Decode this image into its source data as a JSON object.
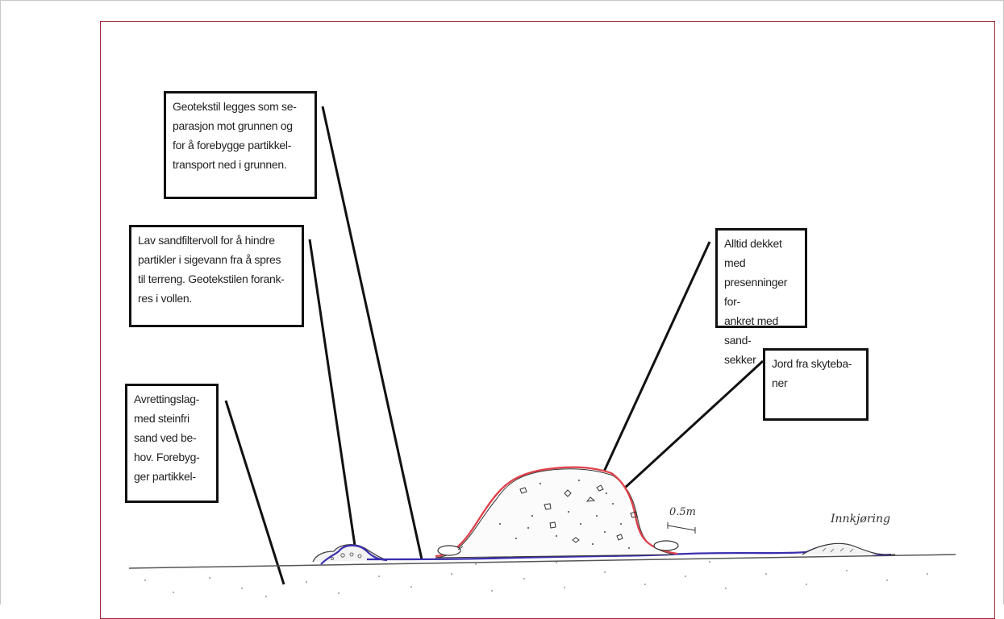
{
  "callouts": {
    "geotextile": "Geotekstil legges som se-\nparasjon mot grunnen og\nfor å forebygge partikkel-\ntransport ned i grunnen.",
    "sand_filter": "Lav sandfiltervoll for å hindre\npartikler i sigevann fra å spres\ntil terreng. Geotekstilen forank-\nres i vollen.",
    "leveling": "Avrettingslag-\nmed steinfri\nsand ved be-\nhov. Forebyg-\nger partikkel-",
    "covered": "Alltid dekket med\npresenninger for-\nankret med sand-\nsekker",
    "soil": "Jord fra skyteba-\nner"
  },
  "sketch_labels": {
    "scale": "0.5m",
    "entrance": "Innkjøring"
  },
  "colors": {
    "frame": "#a3283a",
    "cover_line": "#e0404a",
    "geotextile_line": "#3a2fb0",
    "ink": "#111111"
  }
}
